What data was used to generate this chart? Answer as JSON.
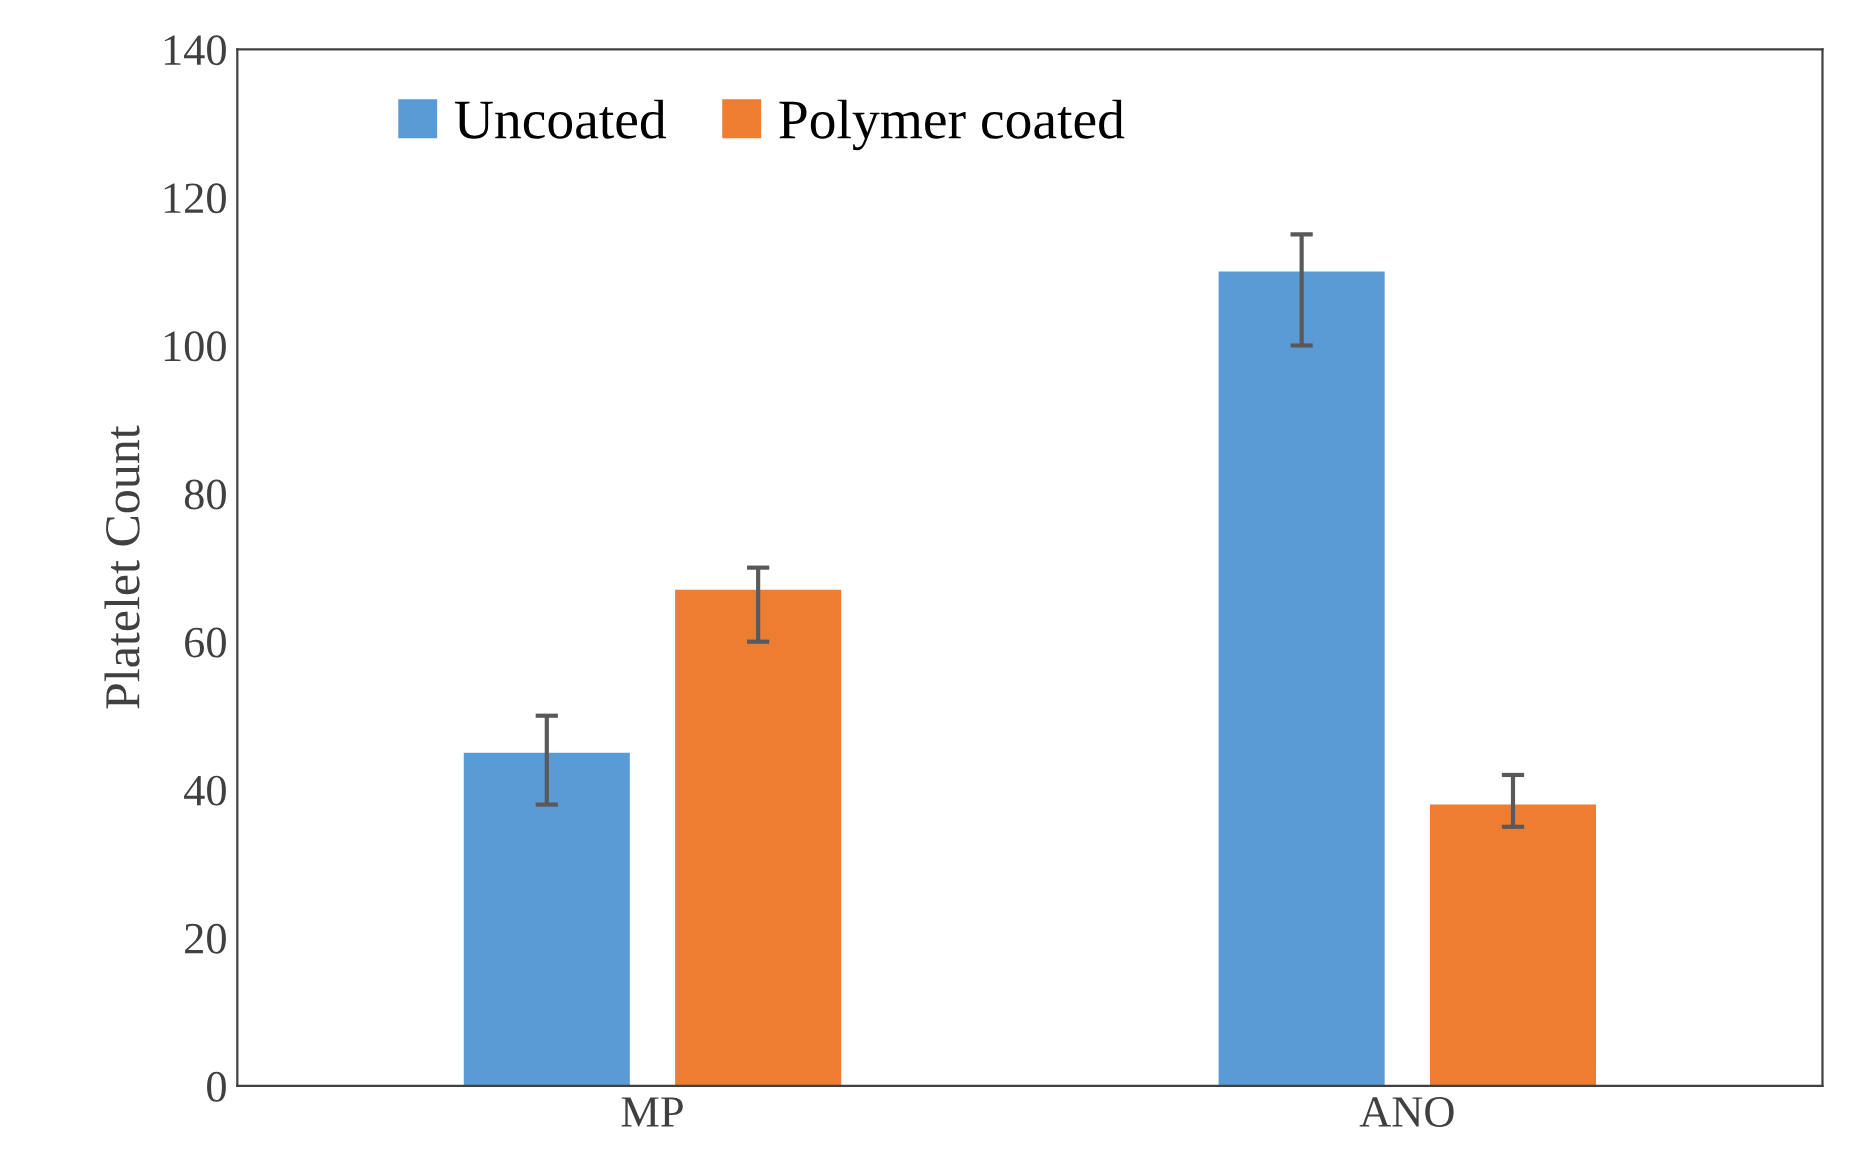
{
  "chart_data": {
    "type": "bar",
    "ylabel": "Platelet Count",
    "categories": [
      "MP",
      "ANO"
    ],
    "series": [
      {
        "name": "Uncoated",
        "color": "#5b9bd5",
        "values": [
          45,
          110
        ],
        "errors": [
          [
            38,
            50
          ],
          [
            100,
            115
          ]
        ]
      },
      {
        "name": "Polymer coated",
        "color": "#ed7d31",
        "values": [
          67,
          38
        ],
        "errors": [
          [
            60,
            70
          ],
          [
            35,
            42
          ]
        ]
      }
    ],
    "ylim": [
      0,
      140
    ],
    "yticks": [
      0,
      20,
      40,
      60,
      80,
      100,
      120,
      140
    ],
    "grid": false,
    "legend": "top left"
  }
}
